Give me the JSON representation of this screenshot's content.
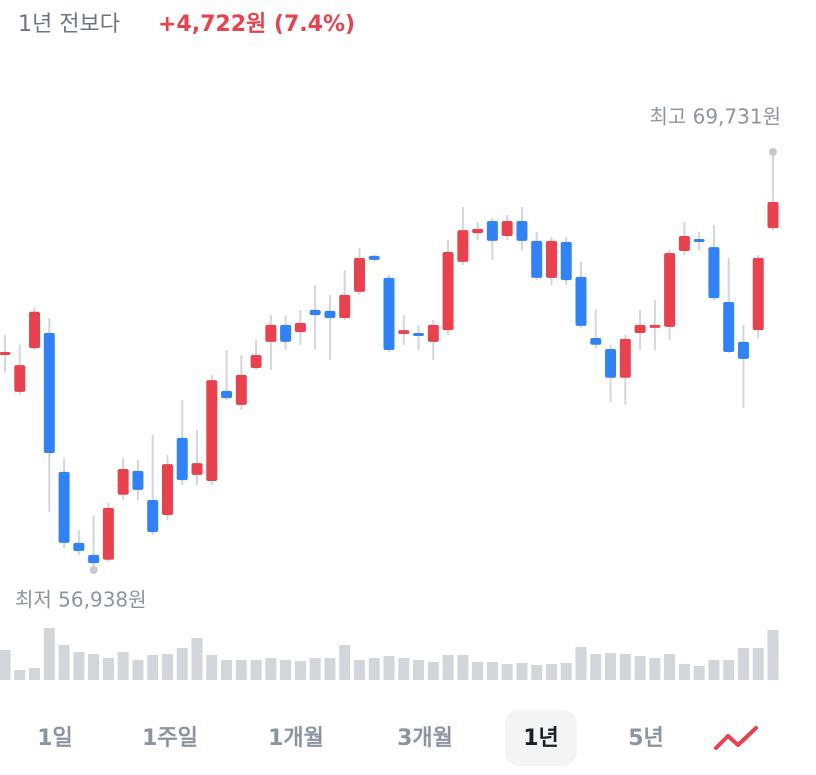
{
  "header": {
    "label": "1년 전보다",
    "change": "+4,722원 (7.4%)"
  },
  "chart_data": {
    "type": "candlestick",
    "open": [
      63550,
      62390,
      63730,
      64190,
      59940,
      57770,
      57400,
      57250,
      59240,
      59970,
      59080,
      58620,
      60980,
      59850,
      59660,
      62420,
      61990,
      63120,
      63920,
      64440,
      64220,
      64900,
      64870,
      64650,
      65450,
      66550,
      65880,
      64160,
      64190,
      63920,
      64280,
      66370,
      67250,
      67620,
      67160,
      67620,
      67010,
      65880,
      66980,
      65910,
      64040,
      63700,
      62820,
      64190,
      64350,
      64380,
      66700,
      67070,
      66820,
      65140,
      63920,
      64280,
      67400
    ],
    "high": [
      64130,
      63830,
      64960,
      64650,
      60370,
      58160,
      58620,
      58990,
      60370,
      60310,
      61070,
      60460,
      62140,
      61220,
      62910,
      63670,
      63520,
      63980,
      64740,
      64740,
      64900,
      65660,
      65360,
      66120,
      66790,
      66580,
      65970,
      64740,
      64440,
      64590,
      67040,
      68050,
      67590,
      67710,
      67800,
      68050,
      67280,
      67130,
      67130,
      66370,
      64900,
      63830,
      64130,
      64900,
      65200,
      66730,
      67590,
      67280,
      67500,
      66490,
      64440,
      66580,
      69731
    ],
    "low": [
      63000,
      62300,
      63670,
      58720,
      57610,
      57400,
      56938,
      57190,
      59080,
      59080,
      58010,
      58470,
      59540,
      59540,
      59540,
      62140,
      61840,
      63060,
      63060,
      63670,
      63830,
      63670,
      63370,
      64590,
      65360,
      66370,
      63610,
      63830,
      63670,
      63370,
      64130,
      66270,
      67040,
      66430,
      67040,
      66730,
      65810,
      65660,
      65660,
      64350,
      63730,
      62080,
      61990,
      63670,
      63670,
      63980,
      66580,
      66730,
      65200,
      63580,
      61900,
      64040,
      67340
    ],
    "close": [
      63610,
      63210,
      64840,
      60520,
      57770,
      57520,
      57150,
      58840,
      60030,
      59390,
      58100,
      60180,
      59690,
      60210,
      62750,
      62200,
      62910,
      63520,
      64440,
      63920,
      64500,
      64740,
      64650,
      65360,
      66490,
      66430,
      63670,
      64280,
      64130,
      64440,
      66670,
      67340,
      67380,
      67010,
      67620,
      67010,
      65880,
      67010,
      65810,
      64410,
      63830,
      62820,
      64010,
      64440,
      64440,
      66640,
      67160,
      66980,
      65260,
      63610,
      63400,
      66490,
      68200
    ],
    "volume": [
      30,
      10,
      12,
      52,
      35,
      28,
      26,
      22,
      28,
      20,
      25,
      26,
      32,
      42,
      25,
      20,
      20,
      20,
      22,
      20,
      19,
      22,
      22,
      35,
      20,
      22,
      24,
      22,
      20,
      18,
      25,
      25,
      18,
      18,
      16,
      17,
      15,
      16,
      17,
      33,
      26,
      27,
      26,
      24,
      22,
      26,
      16,
      14,
      20,
      20,
      32,
      32,
      50
    ],
    "up_color": "#e8424f",
    "down_color": "#3182f6",
    "wick_color": "#d1d6db",
    "volume_color": "#d1d6db",
    "annotations": [
      {
        "text": "최고 69,731원"
      },
      {
        "text": "최저 56,938원"
      }
    ]
  },
  "tabs": [
    "1일",
    "1주일",
    "1개월",
    "3개월",
    "1년",
    "5년"
  ],
  "selected_tab": "1년"
}
